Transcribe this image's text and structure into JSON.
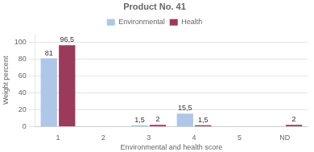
{
  "chart_data": {
    "type": "bar",
    "title": "Product No. 41",
    "xlabel": "Environmental and health score",
    "ylabel": "Weight percent",
    "categories": [
      "1",
      "2",
      "3",
      "4",
      "5",
      "ND"
    ],
    "series": [
      {
        "name": "Environmental",
        "color": "#aec6e8",
        "values": [
          81,
          0,
          1.5,
          15.5,
          0,
          0
        ],
        "value_labels": [
          "81",
          null,
          "1,5",
          "15,5",
          null,
          null
        ]
      },
      {
        "name": "Health",
        "color": "#9b3a5a",
        "values": [
          96.5,
          0,
          2,
          1.5,
          0,
          2
        ],
        "value_labels": [
          "96,5",
          null,
          "2",
          "1,5",
          null,
          "2"
        ]
      }
    ],
    "ylim": [
      0,
      110
    ],
    "yticks": [
      0,
      20,
      40,
      60,
      80,
      100
    ],
    "grid": true,
    "legend": "top",
    "data_labels": true
  }
}
